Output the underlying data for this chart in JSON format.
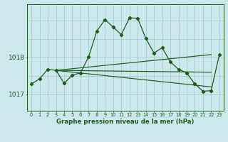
{
  "title": "Graphe pression niveau de la mer (hPa)",
  "bg_color": "#cce8ec",
  "grid_color": "#a8cccc",
  "line_color": "#1a5c1a",
  "ylim": [
    1016.55,
    1019.45
  ],
  "xlim": [
    -0.5,
    23.5
  ],
  "yticks": [
    1017,
    1018
  ],
  "xticks": [
    0,
    1,
    2,
    3,
    4,
    5,
    6,
    7,
    8,
    9,
    10,
    11,
    12,
    13,
    14,
    15,
    16,
    17,
    18,
    19,
    20,
    21,
    22,
    23
  ],
  "series_main": [
    1017.28,
    1017.42,
    1017.68,
    1017.65,
    1017.3,
    1017.52,
    1017.58,
    1018.02,
    1018.72,
    1019.03,
    1018.83,
    1018.62,
    1019.08,
    1019.07,
    1018.52,
    1018.12,
    1018.27,
    1017.88,
    1017.68,
    1017.58,
    1017.28,
    1017.08,
    1017.1,
    1018.08
  ],
  "fan_line1": {
    "x": [
      3,
      22
    ],
    "y": [
      1017.65,
      1018.08
    ]
  },
  "fan_line2": {
    "x": [
      3,
      22
    ],
    "y": [
      1017.65,
      1017.6
    ]
  },
  "fan_line3": {
    "x": [
      3,
      22
    ],
    "y": [
      1017.65,
      1017.2
    ]
  },
  "figsize": [
    3.2,
    2.0
  ],
  "dpi": 100
}
